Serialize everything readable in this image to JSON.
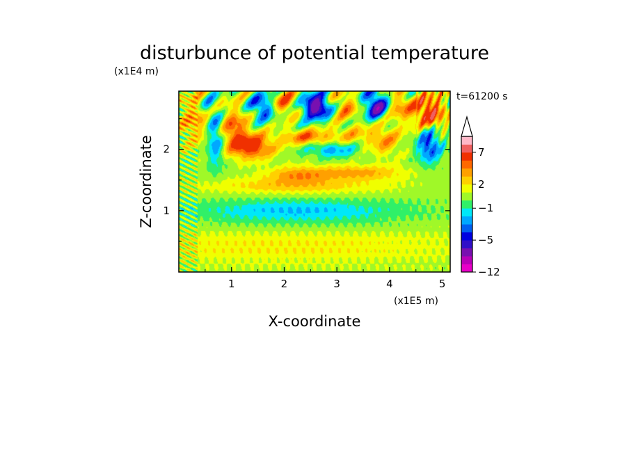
{
  "chart_data": {
    "type": "heatmap",
    "title": "disturbunce of potential temperature",
    "xlabel": "X-coordinate",
    "ylabel": "Z-coordinate",
    "x_scale_label": "(x1E5 m)",
    "y_scale_label": "(x1E4 m)",
    "time_label": "t=61200 s",
    "xlim": [
      0,
      5.15
    ],
    "ylim": [
      0,
      2.95
    ],
    "x_ticks": [
      1,
      2,
      3,
      4,
      5
    ],
    "y_ticks": [
      1,
      2
    ],
    "colorbar": {
      "tick_labels": [
        {
          "label": "7",
          "level": 7
        },
        {
          "label": "2",
          "level": 2
        },
        {
          "label": "−1",
          "level": -1
        },
        {
          "label": "−5",
          "level": -5
        },
        {
          "label": "−12",
          "level": -12
        }
      ],
      "extend": "max",
      "levels": [
        -12,
        -10,
        -8,
        -6,
        -5,
        -4,
        -3,
        -2,
        -1,
        0,
        1,
        2,
        3,
        4,
        5,
        7,
        9,
        11
      ],
      "colors": [
        "#e800c8",
        "#b800b8",
        "#7810b0",
        "#3010c8",
        "#0000e0",
        "#0060f0",
        "#00a8ff",
        "#00e8f8",
        "#30f068",
        "#a0f828",
        "#f0ff00",
        "#ffd000",
        "#ffa000",
        "#ff6800",
        "#f03000",
        "#f06060",
        "#ffb8c8"
      ]
    },
    "field_features": [
      {
        "x": 2.0,
        "z": 0.42,
        "dx": 3.8,
        "dz": 0.32,
        "value": 1.5
      },
      {
        "x": 2.3,
        "z": 0.95,
        "dx": 2.2,
        "dz": 0.26,
        "value": -1.2
      },
      {
        "x": 2.2,
        "z": 1.0,
        "dx": 1.7,
        "dz": 0.15,
        "value": -1.4
      },
      {
        "x": 2.2,
        "z": 1.4,
        "dx": 1.8,
        "dz": 0.13,
        "value": 2.2
      },
      {
        "x": 3.4,
        "z": 1.62,
        "dx": 0.85,
        "dz": 0.12,
        "value": 3.0
      },
      {
        "x": 2.25,
        "z": 1.58,
        "dx": 0.6,
        "dz": 0.14,
        "value": 3.0
      },
      {
        "x": 1.4,
        "z": 2.05,
        "dx": 0.4,
        "dz": 0.2,
        "value": 5.5
      },
      {
        "x": 1.05,
        "z": 2.35,
        "dx": 0.28,
        "dz": 0.35,
        "value": 4.0
      },
      {
        "x": 0.7,
        "z": 2.2,
        "dx": 0.16,
        "dz": 0.45,
        "value": -4.0
      },
      {
        "x": 0.3,
        "z": 2.5,
        "dx": 0.3,
        "dz": 0.4,
        "value": 3.0
      },
      {
        "x": 0.55,
        "z": 2.7,
        "dx": 0.14,
        "dz": 0.2,
        "value": -2.0
      },
      {
        "x": 1.6,
        "z": 2.7,
        "dx": 0.25,
        "dz": 0.22,
        "value": -5.0
      },
      {
        "x": 2.0,
        "z": 2.75,
        "dx": 0.3,
        "dz": 0.2,
        "value": 4.0
      },
      {
        "x": 2.6,
        "z": 2.7,
        "dx": 0.28,
        "dz": 0.2,
        "value": -8.0
      },
      {
        "x": 3.15,
        "z": 2.7,
        "dx": 0.25,
        "dz": 0.2,
        "value": 3.5
      },
      {
        "x": 3.75,
        "z": 2.72,
        "dx": 0.22,
        "dz": 0.22,
        "value": -7.0
      },
      {
        "x": 4.2,
        "z": 2.7,
        "dx": 0.25,
        "dz": 0.25,
        "value": 3.0
      },
      {
        "x": 4.75,
        "z": 2.6,
        "dx": 0.3,
        "dz": 0.3,
        "value": 6.0
      },
      {
        "x": 4.75,
        "z": 2.1,
        "dx": 0.22,
        "dz": 0.3,
        "value": -5.0
      },
      {
        "x": 2.9,
        "z": 2.0,
        "dx": 0.45,
        "dz": 0.12,
        "value": -3.0
      },
      {
        "x": 2.45,
        "z": 2.2,
        "dx": 0.5,
        "dz": 0.12,
        "value": 4.0
      },
      {
        "x": 3.9,
        "z": 2.15,
        "dx": 0.3,
        "dz": 0.25,
        "value": 3.0
      },
      {
        "x": 3.3,
        "z": 2.25,
        "dx": 0.4,
        "dz": 0.15,
        "value": 2.0
      }
    ]
  }
}
